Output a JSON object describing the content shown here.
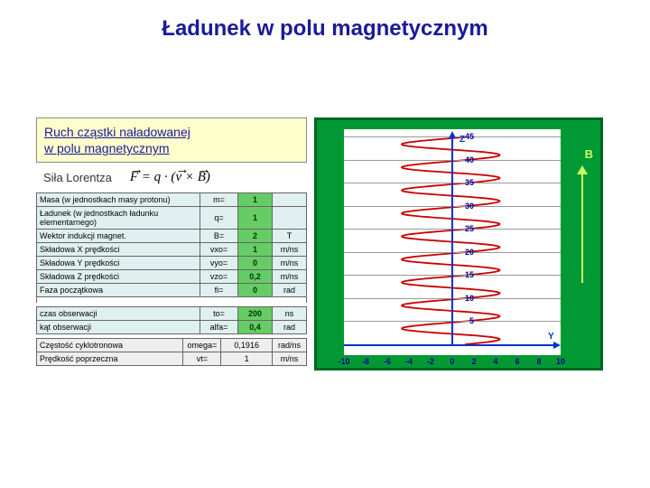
{
  "title": {
    "text": "Ładunek w polu magnetycznym",
    "color": "#1a1a99",
    "fontsize": 24
  },
  "header": {
    "line1": "Ruch cząstki naładowanej",
    "line2": "w polu magnetycznym",
    "color": "#1a1a99",
    "bg": "#ffffcc"
  },
  "lorentz": {
    "label": "Siła Lorentza",
    "formula_text": "F = q · (v × B)"
  },
  "params": [
    {
      "label": "Masa (w jednostkach masy protonu)",
      "sym": "m=",
      "val": "1",
      "unit": "",
      "twoLine": true
    },
    {
      "label": "Ładunek (w jednostkach ładunku elementarnego)",
      "sym": "q=",
      "val": "1",
      "unit": "",
      "twoLine": true
    },
    {
      "label": "Wektor indukcji magnet.",
      "sym": "B=",
      "val": "2",
      "unit": "T"
    },
    {
      "label": "Składowa X prędkości",
      "sym": "vxo=",
      "val": "1",
      "unit": "m/ns"
    },
    {
      "label": "Składowa Y prędkości",
      "sym": "vyo=",
      "val": "0",
      "unit": "m/ns"
    },
    {
      "label": "Składowa Z prędkości",
      "sym": "vzo=",
      "val": "0,2",
      "unit": "m/ns"
    },
    {
      "label": "Faza początkowa",
      "sym": "fi=",
      "val": "0",
      "unit": "rad"
    }
  ],
  "observation": [
    {
      "label": "czas obserwacji",
      "sym": "to=",
      "val": "200",
      "unit": "ns"
    },
    {
      "label": "kąt obserwacji",
      "sym": "alfa=",
      "val": "0,4",
      "unit": "rad"
    }
  ],
  "results": [
    {
      "label": "Częstość cyklotronowa",
      "sym": "omega=",
      "val": "0,1916",
      "unit": "rad/ns"
    },
    {
      "label": "Prędkość poprzeczna",
      "sym": "vt=",
      "val": "1",
      "unit": "m/ns"
    }
  ],
  "chart": {
    "bg": "#009933",
    "plot_bg": "#ffffff",
    "helix_color": "#cc0000",
    "axis_color": "#0033cc",
    "grid_color": "#999999",
    "y_ticks": [
      5,
      10,
      15,
      20,
      25,
      30,
      35,
      40,
      45
    ],
    "x_ticks": [
      -10,
      -8,
      -6,
      -4,
      -2,
      0,
      2,
      4,
      6,
      8,
      10
    ],
    "y_label": "Z",
    "x_label": "Y",
    "b_label": "B",
    "helix_turns": 9,
    "helix_amplitude_x": 60,
    "helix_pitch": 26
  }
}
